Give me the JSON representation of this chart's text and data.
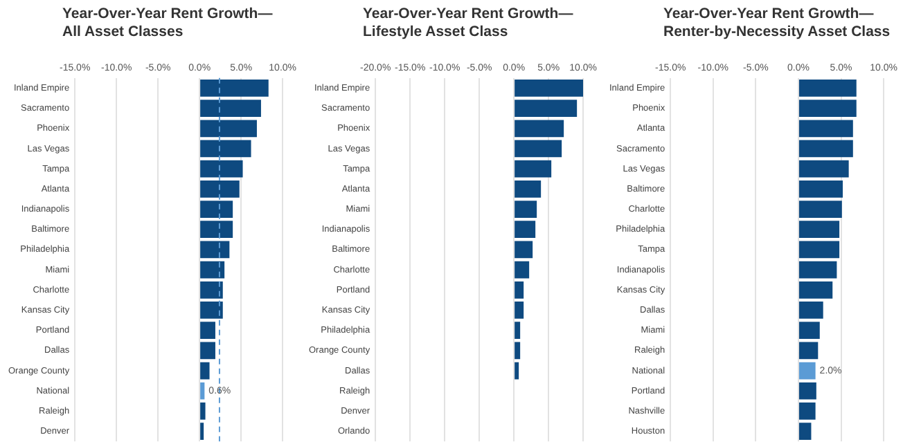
{
  "chart_data": [
    {
      "type": "bar",
      "orientation": "horizontal",
      "title": "Year-Over-Year Rent Growth—\nAll Asset Classes",
      "categories": [
        "Inland Empire",
        "Sacramento",
        "Phoenix",
        "Las Vegas",
        "Tampa",
        "Atlanta",
        "Indianapolis",
        "Baltimore",
        "Philadelphia",
        "Miami",
        "Charlotte",
        "Kansas City",
        "Portland",
        "Dallas",
        "Orange County",
        "National",
        "Raleigh",
        "Denver"
      ],
      "values": [
        8.3,
        7.4,
        6.9,
        6.2,
        5.2,
        4.8,
        4.0,
        4.0,
        3.6,
        3.0,
        2.8,
        2.8,
        1.9,
        1.9,
        1.2,
        0.6,
        0.7,
        0.5
      ],
      "colors": [
        "#0e4a80",
        "#0e4a80",
        "#0e4a80",
        "#0e4a80",
        "#0e4a80",
        "#0e4a80",
        "#0e4a80",
        "#0e4a80",
        "#0e4a80",
        "#0e4a80",
        "#0e4a80",
        "#0e4a80",
        "#0e4a80",
        "#0e4a80",
        "#0e4a80",
        "#5b9bd5",
        "#0e4a80",
        "#0e4a80"
      ],
      "value_labels": [
        null,
        null,
        null,
        null,
        null,
        null,
        null,
        null,
        null,
        null,
        null,
        null,
        null,
        null,
        null,
        "0.6%",
        null,
        null
      ],
      "xlim": [
        -15,
        10
      ],
      "xticks": [
        {
          "value": -15,
          "label": "-15.0%"
        },
        {
          "value": -10,
          "label": "-10.0%"
        },
        {
          "value": -5,
          "label": "-5.0%"
        },
        {
          "value": 0,
          "label": "0.0%"
        },
        {
          "value": 5,
          "label": "5.0%"
        },
        {
          "value": 10,
          "label": "10.0%"
        }
      ],
      "ref_lines": [
        {
          "axis": "x",
          "value": 2.4,
          "color": "#5b9bd5",
          "line_style": "dashed"
        }
      ],
      "grid": "x"
    },
    {
      "type": "bar",
      "orientation": "horizontal",
      "title": "Year-Over-Year Rent Growth—\nLifestyle Asset Class",
      "categories": [
        "Inland Empire",
        "Sacramento",
        "Phoenix",
        "Las Vegas",
        "Tampa",
        "Atlanta",
        "Miami",
        "Indianapolis",
        "Baltimore",
        "Charlotte",
        "Portland",
        "Kansas City",
        "Philadelphia",
        "Orange County",
        "Dallas",
        "Raleigh",
        "Denver",
        "Orlando"
      ],
      "values": [
        10.0,
        9.1,
        7.2,
        6.9,
        5.4,
        3.9,
        3.3,
        3.1,
        2.7,
        2.2,
        1.4,
        1.4,
        0.9,
        0.9,
        0.7,
        0,
        0.1,
        0.1
      ],
      "colors": [
        "#0e4a80",
        "#0e4a80",
        "#0e4a80",
        "#0e4a80",
        "#0e4a80",
        "#0e4a80",
        "#0e4a80",
        "#0e4a80",
        "#0e4a80",
        "#0e4a80",
        "#0e4a80",
        "#0e4a80",
        "#0e4a80",
        "#0e4a80",
        "#0e4a80",
        "#0e4a80",
        "#0e4a80",
        "#0e4a80"
      ],
      "xlim": [
        -20,
        10
      ],
      "xticks": [
        {
          "value": -20,
          "label": "-20.0%"
        },
        {
          "value": -15,
          "label": "-15.0%"
        },
        {
          "value": -10,
          "label": "-10.0%"
        },
        {
          "value": -5,
          "label": "-5.0%"
        },
        {
          "value": 0,
          "label": "0.0%"
        },
        {
          "value": 5,
          "label": "5.0%"
        },
        {
          "value": 10,
          "label": "10.0%"
        }
      ],
      "grid": "x"
    },
    {
      "type": "bar",
      "orientation": "horizontal",
      "title": "Year-Over-Year Rent Growth—\nRenter-by-Necessity Asset Class",
      "categories": [
        "Inland Empire",
        "Phoenix",
        "Atlanta",
        "Sacramento",
        "Las Vegas",
        "Baltimore",
        "Charlotte",
        "Philadelphia",
        "Tampa",
        "Indianapolis",
        "Kansas City",
        "Dallas",
        "Miami",
        "Raleigh",
        "National",
        "Portland",
        "Nashville",
        "Houston"
      ],
      "values": [
        6.8,
        6.8,
        6.4,
        6.4,
        5.9,
        5.2,
        5.1,
        4.8,
        4.8,
        4.5,
        4.0,
        2.9,
        2.5,
        2.3,
        2.0,
        2.1,
        2.0,
        1.5
      ],
      "colors": [
        "#0e4a80",
        "#0e4a80",
        "#0e4a80",
        "#0e4a80",
        "#0e4a80",
        "#0e4a80",
        "#0e4a80",
        "#0e4a80",
        "#0e4a80",
        "#0e4a80",
        "#0e4a80",
        "#0e4a80",
        "#0e4a80",
        "#0e4a80",
        "#5b9bd5",
        "#0e4a80",
        "#0e4a80",
        "#0e4a80"
      ],
      "value_labels": [
        null,
        null,
        null,
        null,
        null,
        null,
        null,
        null,
        null,
        null,
        null,
        null,
        null,
        null,
        "2.0%",
        null,
        null,
        null
      ],
      "xlim": [
        -15,
        10
      ],
      "xticks": [
        {
          "value": -15,
          "label": "-15.0%"
        },
        {
          "value": -10,
          "label": "-10.0%"
        },
        {
          "value": -5,
          "label": "-5.0%"
        },
        {
          "value": 0,
          "label": "0.0%"
        },
        {
          "value": 5,
          "label": "5.0%"
        },
        {
          "value": 10,
          "label": "10.0%"
        }
      ],
      "grid": "x"
    }
  ]
}
